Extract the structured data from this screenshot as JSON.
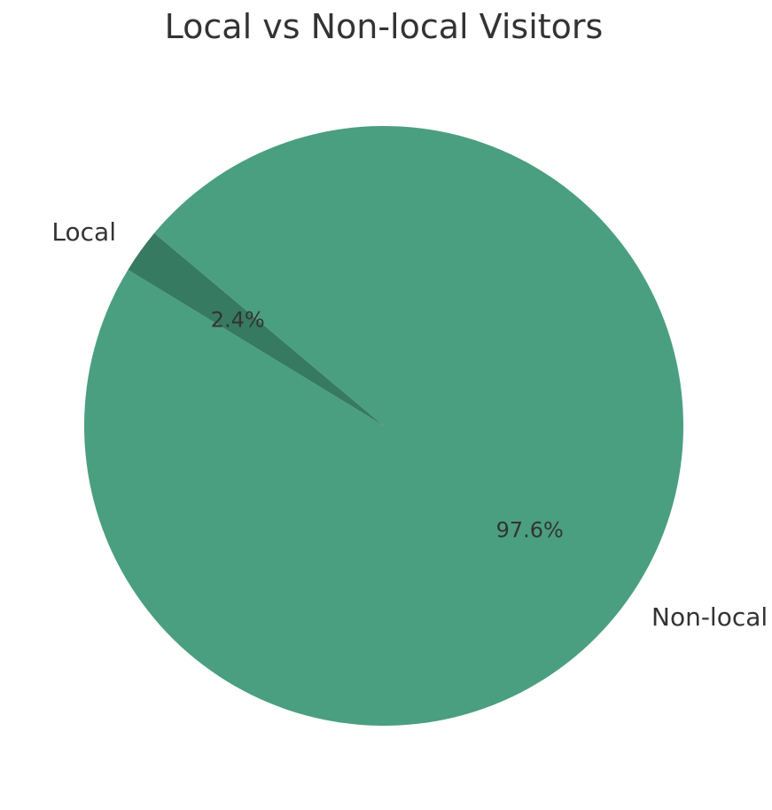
{
  "chart_data": {
    "type": "pie",
    "title": "Local vs Non-local Visitors",
    "slices": [
      {
        "label": "Local",
        "value": 2.4,
        "value_label": "2.4%",
        "color": "#377a62"
      },
      {
        "label": "Non-local",
        "value": 97.6,
        "value_label": "97.6%",
        "color": "#4a9f80"
      }
    ],
    "start_angle_deg": 140,
    "direction": "counterclockwise",
    "legend": "none"
  }
}
